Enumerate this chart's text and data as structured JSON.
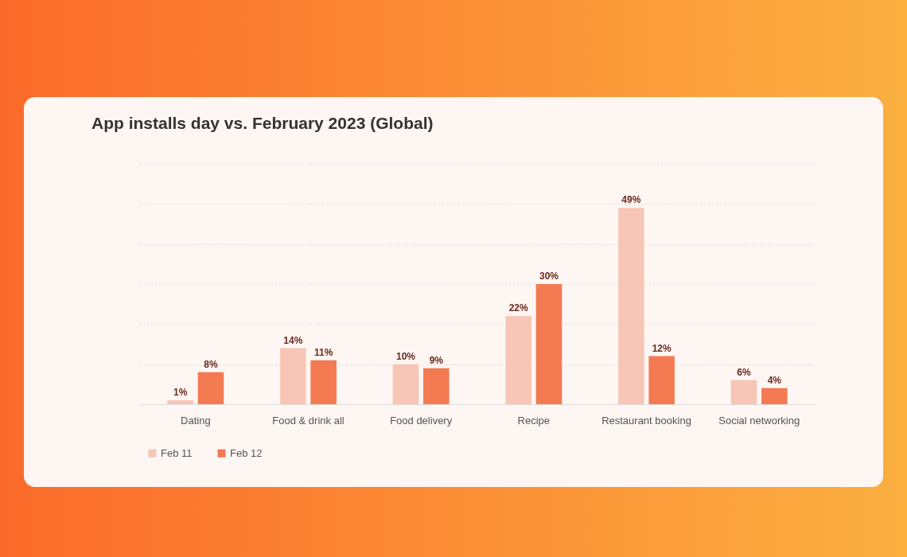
{
  "chart_data": {
    "type": "bar",
    "title": "App installs day vs. February 2023 (Global)",
    "categories": [
      "Dating",
      "Food & drink all",
      "Food delivery",
      "Recipe",
      "Restaurant booking",
      "Social networking"
    ],
    "series": [
      {
        "name": "Feb 11",
        "color": "#f7c6b6",
        "values": [
          1,
          14,
          10,
          22,
          49,
          6
        ],
        "value_labels": [
          "1%",
          "14%",
          "10%",
          "22%",
          "49%",
          "6%"
        ]
      },
      {
        "name": "Feb 12",
        "color": "#f47a52",
        "values": [
          8,
          11,
          9,
          30,
          12,
          4
        ],
        "value_labels": [
          "8%",
          "11%",
          "9%",
          "30%",
          "12%",
          "4%"
        ]
      }
    ],
    "ylim": [
      0,
      60
    ],
    "yticks": [
      0,
      10,
      20,
      30,
      40,
      50,
      60
    ],
    "grid": "y",
    "tick_labels": "x",
    "legend": "bottom"
  }
}
